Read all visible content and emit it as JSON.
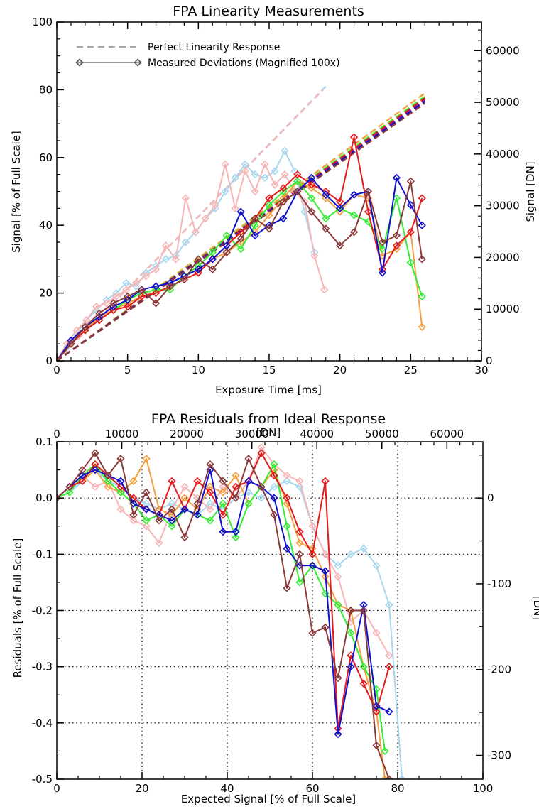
{
  "colors": {
    "red": "#e41a1c",
    "blue": "#1010cc",
    "green": "#33ee33",
    "brown": "#8b3a3a",
    "orange": "#f4a040",
    "pink": "#f7b5b5",
    "lightblue": "#a8d8f0",
    "purple": "#8a1a8a"
  },
  "chart_data": [
    {
      "type": "line",
      "title": "FPA Linearity Measurements",
      "xlabel": "Exposure Time [ms]",
      "ylabel": "Signal [% of Full Scale]",
      "y2label": "Signal [DN]",
      "xlim": [
        0,
        30
      ],
      "ylim": [
        0,
        100
      ],
      "y2lim": [
        0,
        65535
      ],
      "xticks": [
        "0",
        "5",
        "10",
        "15",
        "20",
        "25",
        "30"
      ],
      "yticks": [
        "0",
        "20",
        "40",
        "60",
        "80",
        "100"
      ],
      "y2ticks": [
        "0",
        "10000",
        "20000",
        "30000",
        "40000",
        "50000",
        "60000"
      ],
      "grid": false,
      "legend_position": "top-left",
      "legend": [
        {
          "label": "Perfect Linearity Response",
          "style": "dashed"
        },
        {
          "label": "Measured Deviations (Magnified 100x)",
          "style": "line-diamond"
        }
      ],
      "ideal_lines": [
        {
          "color": "lightblue",
          "x": [
            0,
            19
          ],
          "y": [
            0,
            81
          ]
        },
        {
          "color": "pink",
          "x": [
            0,
            18.8
          ],
          "y": [
            0,
            80
          ]
        },
        {
          "color": "orange",
          "x": [
            0,
            26
          ],
          "y": [
            0,
            79
          ]
        },
        {
          "color": "green",
          "x": [
            0,
            26
          ],
          "y": [
            0,
            78
          ]
        },
        {
          "color": "red",
          "x": [
            0,
            26
          ],
          "y": [
            0,
            77.5
          ]
        },
        {
          "color": "purple",
          "x": [
            0,
            26
          ],
          "y": [
            0,
            77
          ]
        },
        {
          "color": "blue",
          "x": [
            0,
            26
          ],
          "y": [
            0,
            76.5
          ]
        },
        {
          "color": "brown",
          "x": [
            0,
            26
          ],
          "y": [
            0,
            76
          ]
        }
      ],
      "series": [
        {
          "color": "lightblue",
          "x": [
            0,
            0.7,
            1.4,
            2.1,
            2.8,
            3.5,
            4.2,
            4.9,
            5.6,
            6.3,
            7.0,
            7.7,
            8.4,
            9.1,
            9.8,
            10.5,
            11.2,
            11.9,
            12.6,
            13.3,
            14.0,
            14.7,
            15.4,
            16.1,
            16.8,
            17.5,
            18.2
          ],
          "y": [
            0,
            4,
            8,
            12,
            15,
            18,
            20,
            23,
            22,
            26,
            28,
            30,
            31,
            35,
            38,
            42,
            45,
            50,
            54,
            58,
            55,
            54,
            56,
            62,
            56,
            44,
            32
          ]
        },
        {
          "color": "pink",
          "x": [
            0,
            0.7,
            1.4,
            2.1,
            2.8,
            3.5,
            4.2,
            4.9,
            5.6,
            6.3,
            7.0,
            7.7,
            8.4,
            9.1,
            9.8,
            10.5,
            11.2,
            11.9,
            12.6,
            13.3,
            14.0,
            14.7,
            15.4,
            16.1,
            16.8,
            17.5,
            18.2,
            18.9
          ],
          "y": [
            0,
            5,
            9,
            12,
            16,
            17,
            19,
            21,
            23,
            25,
            27,
            34,
            30,
            48,
            38,
            42,
            46,
            58,
            45,
            56,
            50,
            58,
            52,
            55,
            50,
            47,
            31,
            21
          ]
        },
        {
          "color": "orange",
          "x": [
            0,
            1,
            2,
            3,
            4,
            5,
            6,
            7,
            8,
            9,
            10,
            11,
            12,
            13,
            14,
            15,
            16,
            17,
            18,
            19,
            20,
            21,
            22,
            23,
            24,
            25,
            25.8
          ],
          "y": [
            0,
            5,
            9,
            13,
            15,
            17,
            19,
            20,
            22,
            24,
            26,
            30,
            32,
            35,
            38,
            43,
            48,
            53,
            51,
            48,
            44,
            49,
            48,
            31,
            33,
            38,
            10
          ]
        },
        {
          "color": "green",
          "x": [
            0,
            1,
            2,
            3,
            4,
            5,
            6,
            7,
            8,
            9,
            10,
            11,
            12,
            13,
            14,
            15,
            16,
            17,
            18,
            19,
            20,
            21,
            22,
            23,
            24,
            25,
            25.8
          ],
          "y": [
            0,
            5,
            9,
            12,
            15,
            18,
            20,
            21,
            21,
            25,
            28,
            32,
            37,
            33,
            40,
            46,
            50,
            53,
            48,
            42,
            45,
            43,
            41,
            33,
            48,
            29,
            19
          ]
        },
        {
          "color": "red",
          "x": [
            0,
            1,
            2,
            3,
            4,
            5,
            6,
            7,
            8,
            9,
            10,
            11,
            12,
            13,
            14,
            15,
            16,
            17,
            18,
            19,
            20,
            21,
            22,
            23,
            24,
            25,
            25.8
          ],
          "y": [
            0,
            5,
            9,
            12,
            15,
            16,
            19,
            20,
            22,
            24,
            26,
            30,
            34,
            38,
            42,
            48,
            51,
            55,
            52,
            50,
            47,
            66,
            44,
            27,
            34,
            38,
            48
          ]
        },
        {
          "color": "blue",
          "x": [
            0,
            1,
            2,
            3,
            4,
            5,
            6,
            7,
            8,
            9,
            10,
            11,
            12,
            13,
            14,
            15,
            16,
            17,
            18,
            19,
            20,
            21,
            22,
            23,
            24,
            25,
            25.8
          ],
          "y": [
            0,
            6,
            10,
            13,
            16,
            18,
            21,
            22,
            23,
            25,
            27,
            30,
            34,
            44,
            37,
            40,
            42,
            50,
            54,
            49,
            45,
            49,
            50,
            26,
            54,
            46,
            40
          ]
        },
        {
          "color": "brown",
          "x": [
            0,
            1,
            2,
            3,
            4,
            5,
            6,
            7,
            8,
            9,
            10,
            11,
            12,
            13,
            14,
            15,
            16,
            17,
            18,
            19,
            20,
            21,
            22,
            23,
            24,
            25,
            25.8
          ],
          "y": [
            0,
            5,
            10,
            14,
            17,
            19,
            21,
            17,
            22,
            24,
            30,
            27,
            32,
            36,
            42,
            39,
            47,
            50,
            44,
            39,
            34,
            38,
            50,
            35,
            37,
            53,
            30
          ]
        }
      ]
    },
    {
      "type": "line",
      "title": "FPA Residuals from Ideal Response",
      "xlabel": "Expected Signal [% of Full Scale]",
      "ylabel": "Residuals [% of Full Scale]",
      "x2label": "[DN]",
      "y2label": "[DN]",
      "xlim": [
        0,
        100
      ],
      "ylim": [
        -0.5,
        0.1
      ],
      "x2lim": [
        0,
        65535
      ],
      "y2lim": [
        -327.7,
        65.5
      ],
      "xticks": [
        "0",
        "20",
        "40",
        "60",
        "80",
        "100"
      ],
      "yticks": [
        "-0.5",
        "-0.4",
        "-0.3",
        "-0.2",
        "-0.1",
        "0.0",
        "0.1"
      ],
      "x2ticks": [
        "0",
        "10000",
        "20000",
        "30000",
        "40000",
        "50000",
        "60000"
      ],
      "y2ticks": [
        "-300",
        "-200",
        "-100",
        "0"
      ],
      "grid": true,
      "series": [
        {
          "color": "lightblue",
          "x": [
            0,
            3,
            6,
            9,
            12,
            15,
            18,
            21,
            24,
            27,
            30,
            33,
            36,
            39,
            42,
            45,
            48,
            51,
            54,
            57,
            60,
            63,
            66,
            69,
            72,
            75,
            78,
            81
          ],
          "y": [
            0,
            0.01,
            0.03,
            0.05,
            0.03,
            0.02,
            0.0,
            -0.01,
            -0.02,
            -0.01,
            -0.02,
            -0.03,
            -0.01,
            -0.02,
            0.0,
            0.01,
            0.0,
            0.02,
            0.03,
            0.02,
            -0.05,
            -0.1,
            -0.12,
            -0.1,
            -0.09,
            -0.12,
            -0.19,
            -0.5
          ]
        },
        {
          "color": "pink",
          "x": [
            0,
            3,
            6,
            9,
            12,
            15,
            18,
            21,
            24,
            27,
            30,
            33,
            36,
            39,
            42,
            45,
            48,
            51,
            54,
            57,
            60,
            63,
            66,
            69,
            72,
            75,
            78
          ],
          "y": [
            0,
            0.02,
            0.04,
            0.02,
            0.03,
            -0.02,
            -0.04,
            -0.05,
            -0.08,
            -0.02,
            0.02,
            0.0,
            -0.02,
            0.02,
            0.0,
            0.03,
            0.09,
            0.06,
            0.04,
            0.03,
            -0.05,
            -0.1,
            -0.14,
            -0.22,
            -0.2,
            -0.24,
            -0.28
          ]
        },
        {
          "color": "orange",
          "x": [
            0,
            3,
            6,
            9,
            12,
            15,
            18,
            21,
            24,
            27,
            30,
            33,
            36,
            39,
            42,
            45,
            48,
            51,
            54,
            57,
            60,
            63,
            66,
            69,
            72,
            75,
            77
          ],
          "y": [
            0,
            0.02,
            0.03,
            0.05,
            0.02,
            0.01,
            0.03,
            0.07,
            -0.02,
            -0.03,
            0.0,
            -0.02,
            0.02,
            0.01,
            0.04,
            -0.01,
            0.02,
            0.05,
            -0.01,
            -0.08,
            -0.09,
            -0.14,
            -0.19,
            -0.2,
            -0.3,
            -0.38,
            -0.5
          ]
        },
        {
          "color": "green",
          "x": [
            0,
            3,
            6,
            9,
            12,
            15,
            18,
            21,
            24,
            27,
            30,
            33,
            36,
            39,
            42,
            45,
            48,
            51,
            54,
            57,
            60,
            63,
            66,
            69,
            72,
            75,
            77
          ],
          "y": [
            0,
            0.01,
            0.04,
            0.06,
            0.03,
            0.01,
            -0.01,
            -0.04,
            -0.03,
            -0.05,
            -0.02,
            -0.03,
            -0.04,
            -0.01,
            -0.07,
            -0.01,
            0.02,
            0.06,
            -0.05,
            -0.15,
            -0.12,
            -0.17,
            -0.19,
            -0.24,
            -0.3,
            -0.34,
            -0.45
          ]
        },
        {
          "color": "red",
          "x": [
            0,
            3,
            6,
            9,
            12,
            15,
            18,
            21,
            24,
            27,
            30,
            33,
            36,
            39,
            42,
            45,
            48,
            51,
            54,
            57,
            60,
            63,
            66,
            69,
            72,
            75,
            78
          ],
          "y": [
            0,
            0.02,
            0.03,
            0.06,
            0.04,
            0.02,
            0.0,
            -0.02,
            -0.03,
            0.03,
            -0.02,
            0.03,
            0.01,
            -0.03,
            0.02,
            0.03,
            0.08,
            0.04,
            0.0,
            -0.06,
            -0.1,
            0.03,
            -0.41,
            -0.28,
            -0.33,
            -0.38,
            -0.3
          ]
        },
        {
          "color": "blue",
          "x": [
            0,
            3,
            6,
            9,
            12,
            15,
            18,
            21,
            24,
            27,
            30,
            33,
            36,
            39,
            42,
            45,
            48,
            51,
            54,
            57,
            60,
            63,
            66,
            69,
            72,
            75,
            78
          ],
          "y": [
            0,
            0.02,
            0.04,
            0.05,
            0.04,
            0.03,
            -0.01,
            -0.02,
            -0.03,
            -0.04,
            -0.02,
            -0.03,
            0.05,
            -0.06,
            -0.06,
            0.03,
            0.02,
            0.0,
            -0.09,
            -0.12,
            -0.12,
            -0.13,
            -0.42,
            -0.3,
            -0.19,
            -0.37,
            -0.38
          ]
        },
        {
          "color": "brown",
          "x": [
            0,
            3,
            6,
            9,
            12,
            15,
            18,
            21,
            24,
            27,
            30,
            33,
            36,
            39,
            42,
            45,
            48,
            51,
            54,
            57,
            60,
            63,
            66,
            69,
            72,
            75,
            78
          ],
          "y": [
            0,
            0.02,
            0.05,
            0.08,
            0.04,
            0.07,
            -0.03,
            0.01,
            -0.04,
            -0.02,
            -0.07,
            -0.01,
            0.06,
            0.03,
            0.0,
            0.07,
            0.02,
            -0.03,
            -0.16,
            -0.1,
            -0.24,
            -0.23,
            -0.32,
            -0.2,
            -0.2,
            -0.44,
            -0.5
          ]
        }
      ]
    }
  ]
}
